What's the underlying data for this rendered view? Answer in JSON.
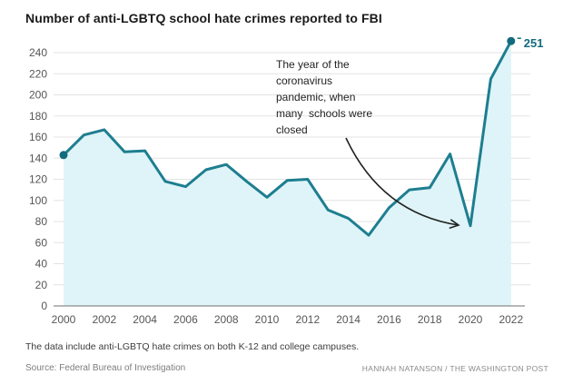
{
  "title": "Number of anti-LGBTQ school hate crimes reported to FBI",
  "chart_data": {
    "type": "area",
    "series_name": "Anti-LGBTQ school hate crimes reported to FBI",
    "x": [
      2000,
      2001,
      2002,
      2003,
      2004,
      2005,
      2006,
      2007,
      2008,
      2009,
      2010,
      2011,
      2012,
      2013,
      2014,
      2015,
      2016,
      2017,
      2018,
      2019,
      2020,
      2021,
      2022
    ],
    "values": [
      143,
      162,
      167,
      146,
      147,
      118,
      113,
      129,
      134,
      118,
      103,
      119,
      120,
      91,
      83,
      67,
      93,
      110,
      112,
      144,
      76,
      215,
      251
    ],
    "title": "Number of anti-LGBTQ school hate crimes reported to FBI",
    "xlabel": "",
    "ylabel": "",
    "ylim": [
      0,
      240
    ],
    "ytick_step": 20,
    "yticks": [
      0,
      20,
      40,
      60,
      80,
      100,
      120,
      140,
      160,
      180,
      200,
      220,
      240
    ],
    "xticks": [
      2000,
      2002,
      2004,
      2006,
      2008,
      2010,
      2012,
      2014,
      2016,
      2018,
      2020,
      2022
    ],
    "grid": true,
    "legend": "none",
    "end_label": "251",
    "markers": {
      "first_point": true,
      "last_point": true
    },
    "annotation": {
      "lines": [
        "The year of the",
        "coronavirus",
        "pandemic, when",
        "many  schools were",
        "closed"
      ],
      "target": "2020 dip"
    },
    "colors": {
      "line": "#1e7e90",
      "fill": "#def4f8",
      "accent": "#136b7d",
      "grid": "#e3e3e3",
      "axis": "#8c8c8c",
      "tick_text": "#565656",
      "arrow": "#222222"
    }
  },
  "footnote": "The data include anti-LGBTQ hate crimes on both K-12 and college campuses.",
  "source": "Source: Federal Bureau of Investigation",
  "credit": "HANNAH NATANSON / THE WASHINGTON POST"
}
